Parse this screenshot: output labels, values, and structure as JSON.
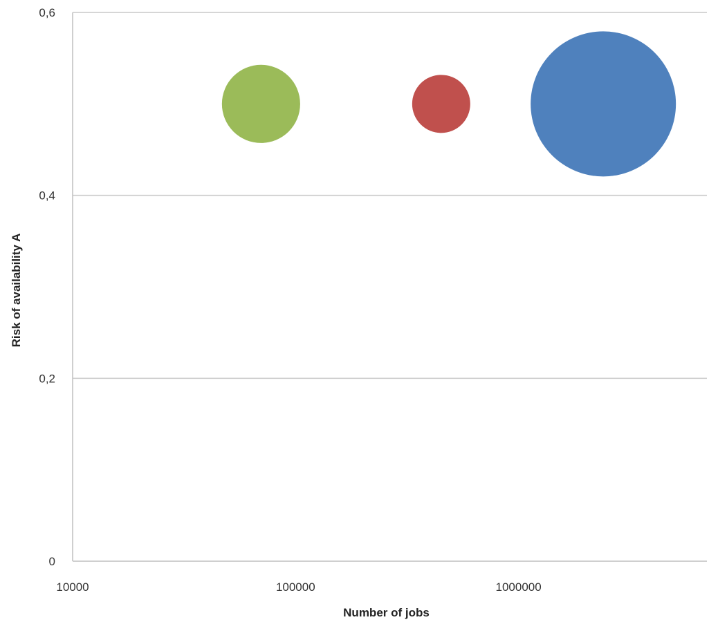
{
  "chart_data": {
    "type": "bubble",
    "title": "",
    "xlabel": "Number of jobs",
    "ylabel": "Risk of availability A",
    "x_scale": "log",
    "xlim": [
      10000,
      7000000
    ],
    "ylim": [
      0,
      0.6
    ],
    "x_ticks": [
      {
        "value": 10000,
        "label": "10000"
      },
      {
        "value": 100000,
        "label": "100000"
      },
      {
        "value": 1000000,
        "label": "1000000"
      }
    ],
    "y_ticks": [
      {
        "value": 0,
        "label": "0"
      },
      {
        "value": 0.2,
        "label": "0,2"
      },
      {
        "value": 0.4,
        "label": "0,4"
      },
      {
        "value": 0.6,
        "label": "0,6"
      }
    ],
    "grid": "horizontal",
    "legend": "none",
    "points": [
      {
        "x": 70000,
        "y": 0.5,
        "size": 0.29,
        "color": "#9BBB59"
      },
      {
        "x": 450000,
        "y": 0.5,
        "size": 0.16,
        "color": "#C0504D"
      },
      {
        "x": 2400000,
        "y": 0.5,
        "size": 1.0,
        "color": "#4F81BD"
      }
    ]
  }
}
